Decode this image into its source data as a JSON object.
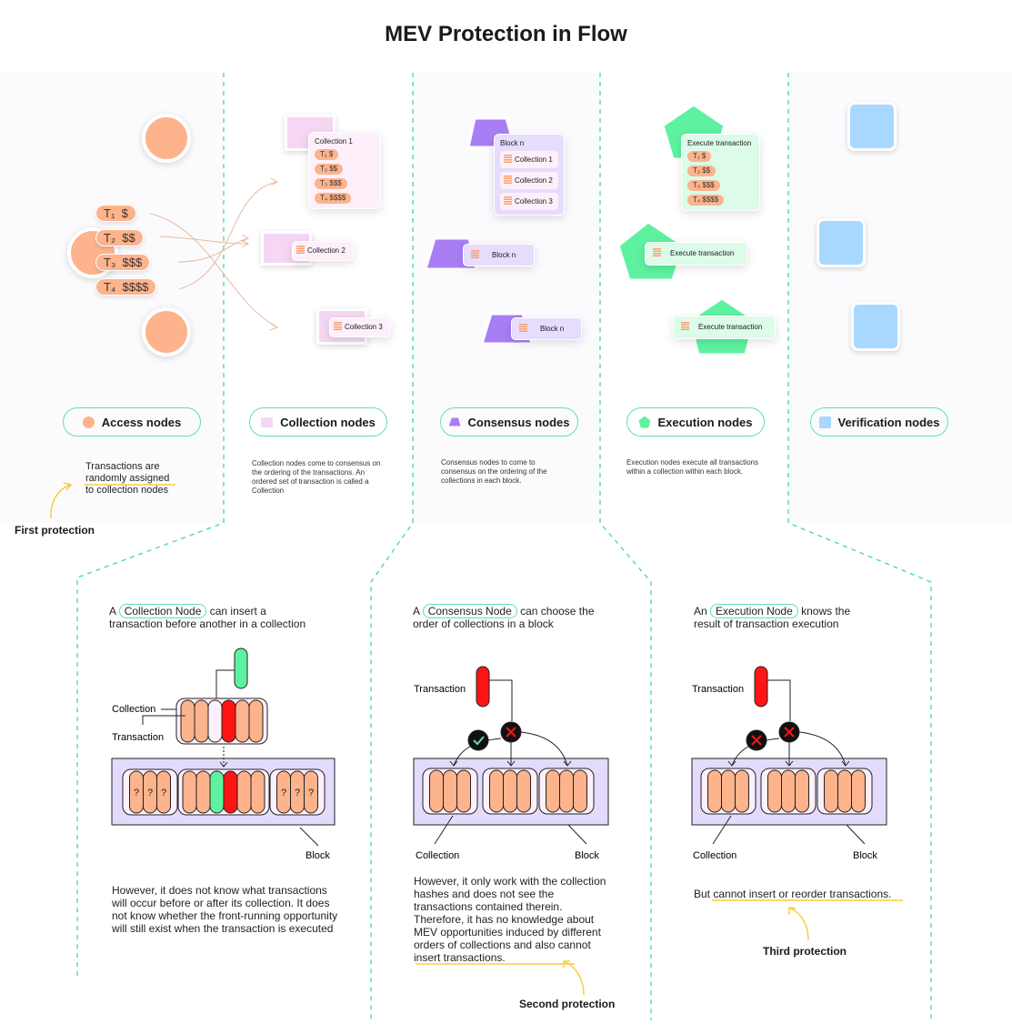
{
  "title": "MEV Protection in Flow",
  "colors": {
    "accent_green": "#5ee3a5",
    "access": "#fdb38c",
    "collection": "#f6d7f3",
    "consensus": "#a97ef5",
    "execution": "#5ef2a0",
    "verification": "#a8d8ff",
    "highlight": "#f5c518",
    "malicious": "#ff1414"
  },
  "access": {
    "transactions": [
      {
        "label": "T₁",
        "amount": "$"
      },
      {
        "label": "T₂",
        "amount": "$$"
      },
      {
        "label": "T₃",
        "amount": "$$$"
      },
      {
        "label": "T₄",
        "amount": "$$$$"
      }
    ],
    "legend": "Access nodes",
    "desc_line1": "Transactions are",
    "desc_highlight": "randomly assigned",
    "desc_line3": "to collection nodes",
    "protection": "First protection"
  },
  "collection": {
    "card_title": "Collection 1",
    "card2": "Collection 2",
    "card3": "Collection 3",
    "legend": "Collection nodes",
    "desc": "Collection nodes come to consensus on the ordering of the transactions. An ordered set of transaction is called a Collection"
  },
  "consensus": {
    "card_title": "Block n",
    "collections": [
      "Collection 1",
      "Collection 2",
      "Collection 3"
    ],
    "card2": "Block n",
    "card3": "Block n",
    "legend": "Consensus nodes",
    "desc": "Consensus nodes to come to consensus on the ordering of the collections in each block."
  },
  "execution": {
    "card_title": "Execute transaction",
    "card2": "Execute transaction",
    "card3": "Execute transaction",
    "legend": "Execution nodes",
    "desc": "Execution nodes execute all transactions within a collection within each block."
  },
  "verification": {
    "legend": "Verification nodes"
  },
  "panels": [
    {
      "pre": "A",
      "tag": "Collection Node",
      "post": "can insert a",
      "line2": "transaction before another in a collection",
      "label_collection": "Collection",
      "label_transaction": "Transaction",
      "label_block": "Block",
      "unknown": "?",
      "body": "However, it does not know what transactions will occur before or after its collection. It does not know whether the front-running opportunity will still exist when the transaction is executed"
    },
    {
      "pre": "A",
      "tag": "Consensus Node",
      "post": "can choose the",
      "line2": "order of collections in a block",
      "label_transaction": "Transaction",
      "label_collection": "Collection",
      "label_block": "Block",
      "body": "However, it only work with the collection hashes and does not see the transactions contained therein. Therefore, it has no knowledge about MEV opportunities induced by different orders of collections and also cannot insert transactions.",
      "protection": "Second protection"
    },
    {
      "pre": "An",
      "tag": "Execution Node",
      "post": "knows the",
      "line2": "result of transaction execution",
      "label_transaction": "Transaction",
      "label_collection": "Collection",
      "label_block": "Block",
      "body_pre": "But ",
      "body_highlight": "cannot insert or reorder transactions",
      "body_post": ".",
      "protection": "Third protection"
    }
  ]
}
